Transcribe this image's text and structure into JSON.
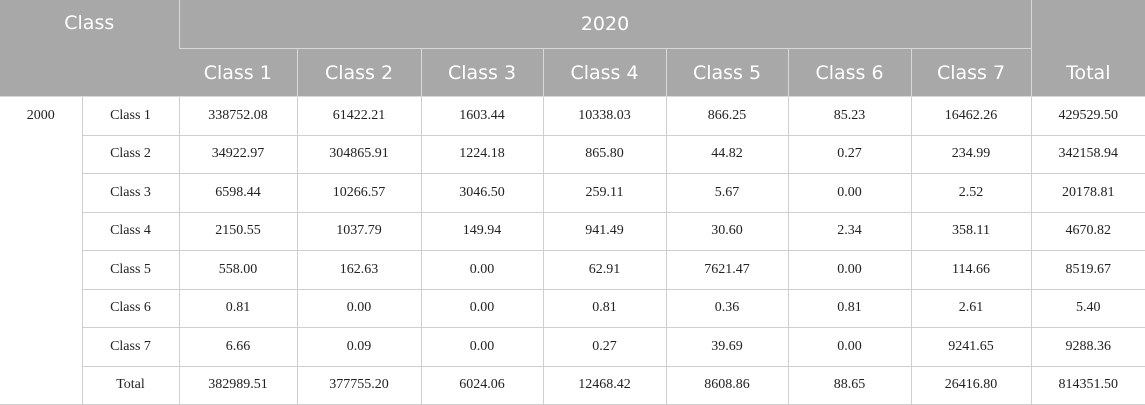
{
  "table": {
    "corner_label": "Class",
    "year_header": "2020",
    "column_headers": [
      "Class 1",
      "Class 2",
      "Class 3",
      "Class 4",
      "Class 5",
      "Class 6",
      "Class 7"
    ],
    "total_header": "Total",
    "row_group_label": "2000",
    "rows": [
      {
        "label": "Class 1",
        "values": [
          "338752.08",
          "61422.21",
          "1603.44",
          "10338.03",
          "866.25",
          "85.23",
          "16462.26"
        ],
        "total": "429529.50"
      },
      {
        "label": "Class 2",
        "values": [
          "34922.97",
          "304865.91",
          "1224.18",
          "865.80",
          "44.82",
          "0.27",
          "234.99"
        ],
        "total": "342158.94"
      },
      {
        "label": "Class 3",
        "values": [
          "6598.44",
          "10266.57",
          "3046.50",
          "259.11",
          "5.67",
          "0.00",
          "2.52"
        ],
        "total": "20178.81"
      },
      {
        "label": "Class 4",
        "values": [
          "2150.55",
          "1037.79",
          "149.94",
          "941.49",
          "30.60",
          "2.34",
          "358.11"
        ],
        "total": "4670.82"
      },
      {
        "label": "Class 5",
        "values": [
          "558.00",
          "162.63",
          "0.00",
          "62.91",
          "7621.47",
          "0.00",
          "114.66"
        ],
        "total": "8519.67"
      },
      {
        "label": "Class 6",
        "values": [
          "0.81",
          "0.00",
          "0.00",
          "0.81",
          "0.36",
          "0.81",
          "2.61"
        ],
        "total": "5.40"
      },
      {
        "label": "Class 7",
        "values": [
          "6.66",
          "0.09",
          "0.00",
          "0.27",
          "39.69",
          "0.00",
          "9241.65"
        ],
        "total": "9288.36"
      },
      {
        "label": "Total",
        "values": [
          "382989.51",
          "377755.20",
          "6024.06",
          "12468.42",
          "8608.86",
          "88.65",
          "26416.80"
        ],
        "total": "814351.50"
      }
    ]
  }
}
